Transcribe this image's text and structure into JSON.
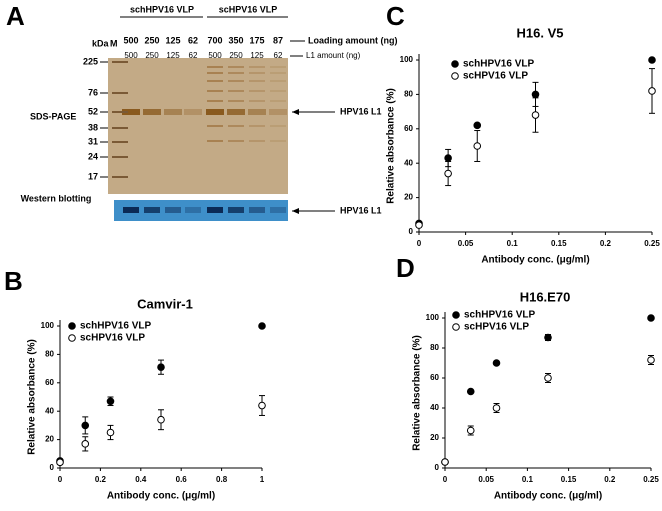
{
  "figure": {
    "panel_label": "A",
    "kda": "kDa",
    "marker_lane": "M",
    "groups": [
      "schHPV16 VLP",
      "scHPV16 VLP"
    ],
    "loading_amounts": [
      500,
      250,
      125,
      62,
      700,
      350,
      175,
      87
    ],
    "loading_label": "Loading amount (ng)",
    "l1_amounts": [
      500,
      250,
      125,
      62,
      500,
      250,
      125,
      62
    ],
    "l1_label": "L1 amount (ng)",
    "ladder": [
      225,
      76,
      52,
      38,
      31,
      24,
      17
    ],
    "sds_label": "SDS-PAGE",
    "western_label": "Western blotting",
    "band_label_sds": "HPV16 L1",
    "band_label_western": "HPV16 L1"
  },
  "chart_data": [
    {
      "type": "scatter",
      "panel_label": "C",
      "title": "H16. V5",
      "x_label": "Antibody conc. (μg/ml)",
      "y_label": "Relative absorbance (%)",
      "x": [
        0,
        0.03125,
        0.0625,
        0.125,
        0.25
      ],
      "xlim": [
        0,
        0.25
      ],
      "xticks": [
        0,
        0.05,
        0.1,
        0.15,
        0.2,
        0.25
      ],
      "ylim": [
        0,
        100
      ],
      "yticks": [
        0,
        20,
        40,
        60,
        80,
        100
      ],
      "legend": "upper left",
      "series": [
        {
          "name": "schHPV16 VLP",
          "color": "#000000",
          "marker_fill": "#000000",
          "values": [
            5,
            43,
            62,
            80,
            100
          ],
          "errors": [
            null,
            5,
            null,
            7,
            null
          ]
        },
        {
          "name": "scHPV16 VLP",
          "color": "#000000",
          "marker_fill": "#ffffff",
          "values": [
            4,
            34,
            50,
            68,
            82
          ],
          "errors": [
            null,
            7,
            9,
            10,
            13
          ]
        }
      ]
    },
    {
      "type": "scatter",
      "panel_label": "B",
      "title": "Camvir-1",
      "x_label": "Antibody conc. (μg/ml)",
      "y_label": "Relative absorbance (%)",
      "x": [
        0,
        0.125,
        0.25,
        0.5,
        1
      ],
      "xlim": [
        0,
        1
      ],
      "xticks": [
        0,
        0.2,
        0.4,
        0.6,
        0.8,
        1
      ],
      "ylim": [
        0,
        100
      ],
      "yticks": [
        0,
        20,
        40,
        60,
        80,
        100
      ],
      "legend": "upper left",
      "series": [
        {
          "name": "schHPV16 VLP",
          "color": "#000000",
          "marker_fill": "#000000",
          "values": [
            5,
            30,
            47,
            71,
            100
          ],
          "errors": [
            null,
            6,
            3,
            5,
            null
          ]
        },
        {
          "name": "scHPV16 VLP",
          "color": "#000000",
          "marker_fill": "#ffffff",
          "values": [
            4,
            17,
            25,
            34,
            44
          ],
          "errors": [
            null,
            5,
            5,
            7,
            7
          ]
        }
      ]
    },
    {
      "type": "scatter",
      "panel_label": "D",
      "title": "H16.E70",
      "x_label": "Antibody conc. (μg/ml)",
      "y_label": "Relative absorbance (%)",
      "x": [
        0,
        0.03125,
        0.0625,
        0.125,
        0.25
      ],
      "xlim": [
        0,
        0.25
      ],
      "xticks": [
        0,
        0.05,
        0.1,
        0.15,
        0.2,
        0.25
      ],
      "ylim": [
        0,
        100
      ],
      "yticks": [
        0,
        20,
        40,
        60,
        80,
        100
      ],
      "legend": "upper left",
      "series": [
        {
          "name": "schHPV16 VLP",
          "color": "#000000",
          "marker_fill": "#000000",
          "values": [
            4,
            51,
            70,
            87,
            100
          ],
          "errors": [
            null,
            null,
            null,
            2,
            null
          ]
        },
        {
          "name": "scHPV16 VLP",
          "color": "#000000",
          "marker_fill": "#ffffff",
          "values": [
            4,
            25,
            40,
            60,
            72
          ],
          "errors": [
            null,
            3,
            3,
            3,
            3
          ]
        }
      ]
    }
  ]
}
